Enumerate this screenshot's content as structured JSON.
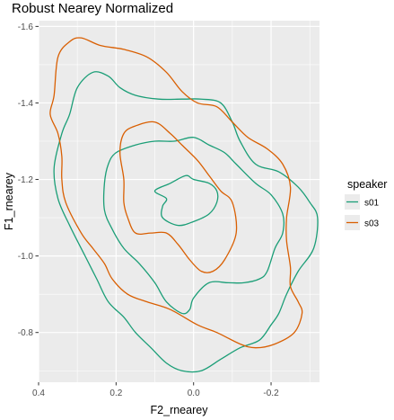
{
  "chart_data": {
    "type": "contour",
    "title": "Robust Nearey Normalized",
    "xlabel": "F2_rnearey",
    "ylabel": "F1_rnearey",
    "x_reversed": true,
    "y_reversed": true,
    "xlim": [
      0.4,
      -0.325
    ],
    "ylim": [
      -1.615,
      -0.67
    ],
    "x_ticks": [
      0.4,
      0.2,
      0.0,
      -0.2
    ],
    "x_tick_labels": [
      "0.4",
      "0.2",
      "0.0",
      "-0.2"
    ],
    "y_ticks": [
      -1.6,
      -1.4,
      -1.2,
      -1.0,
      -0.8
    ],
    "y_tick_labels": [
      "-1.6",
      "-1.4",
      "-1.2",
      "-1.0",
      "-0.8"
    ],
    "grid": true,
    "legend": {
      "title": "speaker",
      "position": "right",
      "entries": [
        {
          "label": "s01",
          "color": "#1b9e77"
        },
        {
          "label": "s03",
          "color": "#d95f02"
        }
      ]
    },
    "series": [
      {
        "name": "s01",
        "color": "#1b9e77",
        "contours": [
          [
            [
              0.32,
              -1.37
            ],
            [
              0.3,
              -1.44
            ],
            [
              0.26,
              -1.48
            ],
            [
              0.22,
              -1.47
            ],
            [
              0.19,
              -1.44
            ],
            [
              0.15,
              -1.42
            ],
            [
              0.09,
              -1.41
            ],
            [
              0.03,
              -1.41
            ],
            [
              -0.02,
              -1.41
            ],
            [
              -0.07,
              -1.4
            ],
            [
              -0.1,
              -1.35
            ],
            [
              -0.12,
              -1.3
            ],
            [
              -0.16,
              -1.24
            ],
            [
              -0.22,
              -1.22
            ],
            [
              -0.27,
              -1.18
            ],
            [
              -0.3,
              -1.14
            ],
            [
              -0.32,
              -1.1
            ],
            [
              -0.31,
              -1.02
            ],
            [
              -0.27,
              -0.96
            ],
            [
              -0.24,
              -0.9
            ],
            [
              -0.22,
              -0.85
            ],
            [
              -0.2,
              -0.82
            ],
            [
              -0.17,
              -0.78
            ],
            [
              -0.12,
              -0.76
            ],
            [
              -0.07,
              -0.73
            ],
            [
              -0.02,
              -0.7
            ],
            [
              0.03,
              -0.7
            ],
            [
              0.07,
              -0.72
            ],
            [
              0.11,
              -0.76
            ],
            [
              0.15,
              -0.8
            ],
            [
              0.18,
              -0.84
            ],
            [
              0.22,
              -0.88
            ],
            [
              0.25,
              -0.94
            ],
            [
              0.28,
              -1.0
            ],
            [
              0.32,
              -1.08
            ],
            [
              0.35,
              -1.15
            ],
            [
              0.36,
              -1.23
            ],
            [
              0.34,
              -1.32
            ],
            [
              0.32,
              -1.37
            ]
          ],
          [
            [
              0.23,
              -1.19
            ],
            [
              0.22,
              -1.24
            ],
            [
              0.2,
              -1.27
            ],
            [
              0.15,
              -1.29
            ],
            [
              0.1,
              -1.3
            ],
            [
              0.05,
              -1.3
            ],
            [
              0.0,
              -1.31
            ],
            [
              -0.04,
              -1.29
            ],
            [
              -0.08,
              -1.27
            ],
            [
              -0.11,
              -1.24
            ],
            [
              -0.16,
              -1.19
            ],
            [
              -0.2,
              -1.16
            ],
            [
              -0.23,
              -1.11
            ],
            [
              -0.23,
              -1.06
            ],
            [
              -0.21,
              -1.02
            ],
            [
              -0.19,
              -0.96
            ],
            [
              -0.17,
              -0.94
            ],
            [
              -0.13,
              -0.93
            ],
            [
              -0.09,
              -0.93
            ],
            [
              -0.04,
              -0.93
            ],
            [
              0.0,
              -0.89
            ],
            [
              0.01,
              -0.86
            ],
            [
              0.03,
              -0.85
            ],
            [
              0.07,
              -0.88
            ],
            [
              0.1,
              -0.93
            ],
            [
              0.14,
              -0.98
            ],
            [
              0.18,
              -1.02
            ],
            [
              0.21,
              -1.07
            ],
            [
              0.23,
              -1.12
            ],
            [
              0.23,
              -1.19
            ]
          ],
          [
            [
              0.07,
              -1.15
            ],
            [
              0.1,
              -1.17
            ],
            [
              0.06,
              -1.19
            ],
            [
              0.02,
              -1.21
            ],
            [
              0.0,
              -1.2
            ],
            [
              -0.04,
              -1.19
            ],
            [
              -0.06,
              -1.17
            ],
            [
              -0.06,
              -1.14
            ],
            [
              -0.04,
              -1.11
            ],
            [
              0.0,
              -1.09
            ],
            [
              0.04,
              -1.08
            ],
            [
              0.08,
              -1.1
            ],
            [
              0.08,
              -1.13
            ],
            [
              0.07,
              -1.15
            ]
          ]
        ]
      },
      {
        "name": "s03",
        "color": "#d95f02",
        "contours": [
          [
            [
              0.35,
              -1.52
            ],
            [
              0.32,
              -1.56
            ],
            [
              0.29,
              -1.57
            ],
            [
              0.24,
              -1.55
            ],
            [
              0.18,
              -1.54
            ],
            [
              0.12,
              -1.52
            ],
            [
              0.07,
              -1.48
            ],
            [
              0.03,
              -1.43
            ],
            [
              -0.01,
              -1.4
            ],
            [
              -0.06,
              -1.39
            ],
            [
              -0.1,
              -1.35
            ],
            [
              -0.14,
              -1.31
            ],
            [
              -0.19,
              -1.28
            ],
            [
              -0.23,
              -1.24
            ],
            [
              -0.25,
              -1.18
            ],
            [
              -0.24,
              -1.1
            ],
            [
              -0.24,
              -1.04
            ],
            [
              -0.25,
              -0.97
            ],
            [
              -0.25,
              -0.92
            ],
            [
              -0.27,
              -0.88
            ],
            [
              -0.28,
              -0.85
            ],
            [
              -0.26,
              -0.8
            ],
            [
              -0.21,
              -0.77
            ],
            [
              -0.16,
              -0.76
            ],
            [
              -0.12,
              -0.77
            ],
            [
              -0.06,
              -0.8
            ],
            [
              -0.01,
              -0.82
            ],
            [
              0.06,
              -0.86
            ],
            [
              0.12,
              -0.88
            ],
            [
              0.17,
              -0.9
            ],
            [
              0.21,
              -0.94
            ],
            [
              0.23,
              -0.98
            ],
            [
              0.26,
              -1.02
            ],
            [
              0.29,
              -1.06
            ],
            [
              0.33,
              -1.14
            ],
            [
              0.34,
              -1.2
            ],
            [
              0.34,
              -1.26
            ],
            [
              0.35,
              -1.32
            ],
            [
              0.37,
              -1.37
            ],
            [
              0.36,
              -1.42
            ],
            [
              0.35,
              -1.52
            ]
          ],
          [
            [
              0.19,
              -1.27
            ],
            [
              0.18,
              -1.32
            ],
            [
              0.15,
              -1.34
            ],
            [
              0.1,
              -1.35
            ],
            [
              0.06,
              -1.32
            ],
            [
              0.03,
              -1.29
            ],
            [
              -0.01,
              -1.25
            ],
            [
              -0.04,
              -1.21
            ],
            [
              -0.07,
              -1.17
            ],
            [
              -0.1,
              -1.14
            ],
            [
              -0.11,
              -1.06
            ],
            [
              -0.08,
              -0.99
            ],
            [
              -0.05,
              -0.96
            ],
            [
              -0.02,
              -0.96
            ],
            [
              0.01,
              -0.99
            ],
            [
              0.04,
              -1.03
            ],
            [
              0.07,
              -1.06
            ],
            [
              0.11,
              -1.06
            ],
            [
              0.15,
              -1.06
            ],
            [
              0.17,
              -1.1
            ],
            [
              0.18,
              -1.14
            ],
            [
              0.18,
              -1.2
            ],
            [
              0.19,
              -1.27
            ]
          ]
        ]
      }
    ]
  }
}
